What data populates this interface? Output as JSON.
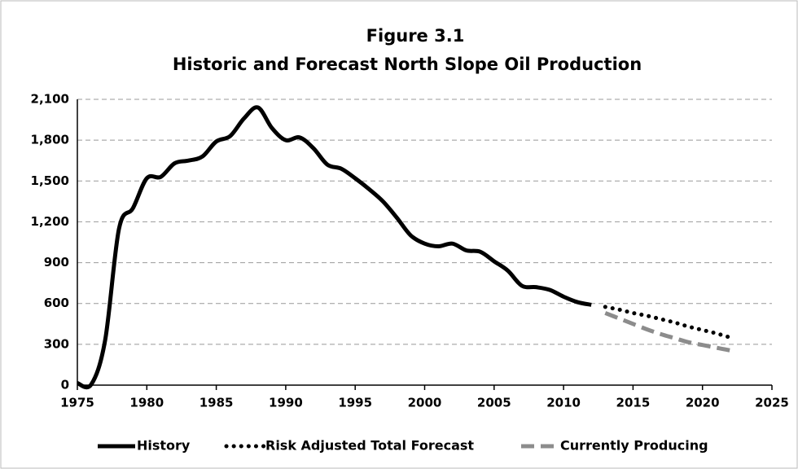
{
  "chart_data": {
    "type": "line",
    "title": [
      "Figure 3.1",
      "Historic and Forecast North Slope Oil Production"
    ],
    "x": [
      1975,
      1976,
      1977,
      1978,
      1979,
      1980,
      1981,
      1982,
      1983,
      1984,
      1985,
      1986,
      1987,
      1988,
      1989,
      1990,
      1991,
      1992,
      1993,
      1994,
      1995,
      1996,
      1997,
      1998,
      1999,
      2000,
      2001,
      2002,
      2003,
      2004,
      2005,
      2006,
      2007,
      2008,
      2009,
      2010,
      2011,
      2012,
      2013,
      2014,
      2015,
      2016,
      2017,
      2018,
      2019,
      2020,
      2021,
      2022
    ],
    "series": [
      {
        "name": "History",
        "color": "#000000",
        "style": "solid",
        "values": [
          15,
          5,
          330,
          1150,
          1300,
          1520,
          1530,
          1630,
          1650,
          1680,
          1790,
          1830,
          1960,
          2040,
          1890,
          1800,
          1820,
          1740,
          1620,
          1590,
          1520,
          1440,
          1350,
          1230,
          1100,
          1040,
          1020,
          1040,
          990,
          980,
          910,
          840,
          730,
          720,
          700,
          650,
          610,
          590,
          null,
          null,
          null,
          null,
          null,
          null,
          null,
          null,
          null,
          null
        ]
      },
      {
        "name": "Risk Adjusted Total Forecast",
        "color": "#000000",
        "style": "dotted",
        "values": [
          null,
          null,
          null,
          null,
          null,
          null,
          null,
          null,
          null,
          null,
          null,
          null,
          null,
          null,
          null,
          null,
          null,
          null,
          null,
          null,
          null,
          null,
          null,
          null,
          null,
          null,
          null,
          null,
          null,
          null,
          null,
          null,
          null,
          null,
          null,
          null,
          null,
          null,
          575,
          555,
          530,
          510,
          485,
          460,
          430,
          405,
          380,
          350
        ]
      },
      {
        "name": "Currently Producing",
        "color": "#8c8c8c",
        "style": "dashed",
        "values": [
          null,
          null,
          null,
          null,
          null,
          null,
          null,
          null,
          null,
          null,
          null,
          null,
          null,
          null,
          null,
          null,
          null,
          null,
          null,
          null,
          null,
          null,
          null,
          null,
          null,
          null,
          null,
          null,
          null,
          null,
          null,
          null,
          null,
          null,
          null,
          null,
          null,
          null,
          530,
          490,
          450,
          410,
          375,
          345,
          315,
          295,
          275,
          255
        ]
      }
    ],
    "xlim": [
      1975,
      2025
    ],
    "xticks": [
      1975,
      1980,
      1985,
      1990,
      1995,
      2000,
      2005,
      2010,
      2015,
      2020,
      2025
    ],
    "ylim": [
      0,
      2100
    ],
    "yticks": [
      0,
      300,
      600,
      900,
      {
        "value": 1200,
        "label": "1,200"
      },
      {
        "value": 1500,
        "label": "1,500"
      },
      {
        "value": 1800,
        "label": "1,800"
      },
      {
        "value": 2100,
        "label": "2,100"
      }
    ],
    "grid": true,
    "legend": "bottom"
  }
}
